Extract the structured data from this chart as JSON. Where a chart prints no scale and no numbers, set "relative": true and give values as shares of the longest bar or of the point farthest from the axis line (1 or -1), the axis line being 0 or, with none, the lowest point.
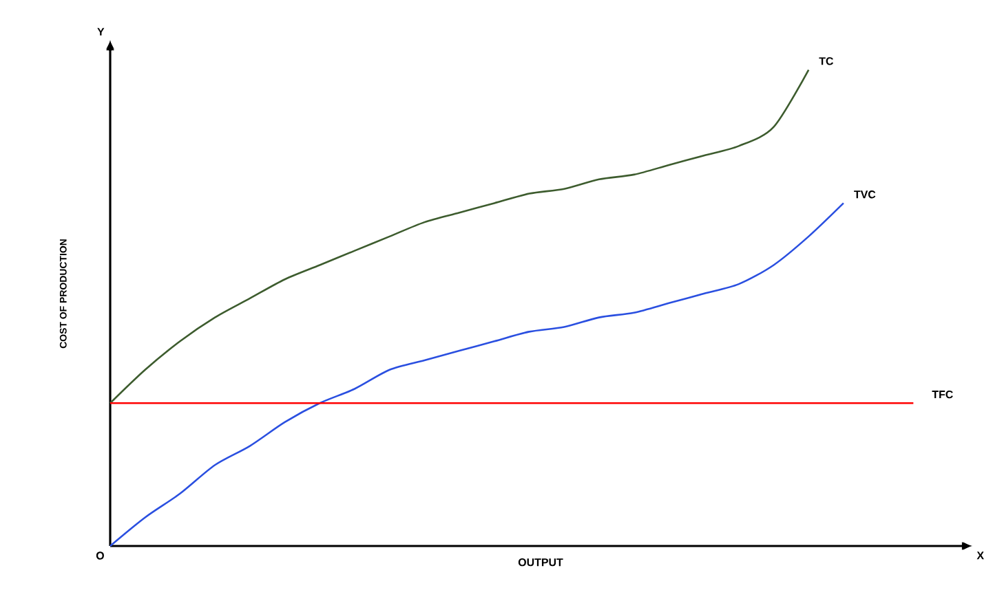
{
  "chart_data": {
    "type": "line",
    "relative": true,
    "xlabel": "OUTPUT",
    "ylabel": "COST OF PRODUCTION",
    "annotations": [
      "O",
      "Y",
      "X"
    ],
    "categories": [
      null,
      null,
      null,
      null,
      null,
      null,
      null,
      null,
      null,
      null,
      null,
      null,
      null,
      null,
      null,
      null,
      null,
      null,
      null,
      null,
      null,
      null,
      null,
      null
    ],
    "series": [
      {
        "name": "TC",
        "color": "#3d5c2e",
        "values": [
          0.3,
          0.37,
          0.43,
          0.48,
          0.52,
          0.56,
          0.59,
          0.62,
          0.65,
          0.68,
          0.7,
          0.72,
          0.74,
          0.75,
          0.77,
          0.78,
          0.8,
          0.82,
          0.84,
          0.88,
          1.0,
          null,
          null,
          null
        ]
      },
      {
        "name": "TVC",
        "color": "#2a4fe0",
        "values": [
          0,
          0.06,
          0.11,
          0.17,
          0.21,
          0.26,
          0.3,
          0.33,
          0.37,
          0.39,
          0.41,
          0.43,
          0.45,
          0.46,
          0.48,
          0.49,
          0.51,
          0.53,
          0.55,
          0.59,
          0.65,
          0.72,
          null,
          null
        ]
      },
      {
        "name": "TFC",
        "color": "#ff0000",
        "values": [
          0.3,
          0.3,
          0.3,
          0.3,
          0.3,
          0.3,
          0.3,
          0.3,
          0.3,
          0.3,
          0.3,
          0.3,
          0.3,
          0.3,
          0.3,
          0.3,
          0.3,
          0.3,
          0.3,
          0.3,
          0.3,
          0.3,
          0.3,
          0.3
        ]
      }
    ]
  }
}
